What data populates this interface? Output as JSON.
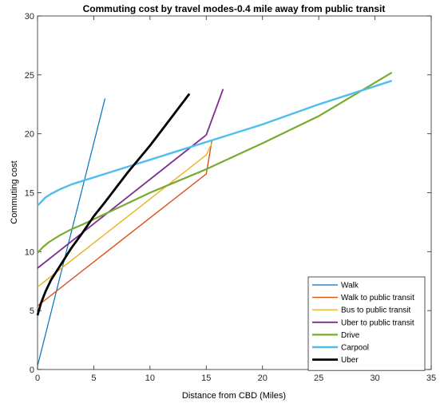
{
  "chart_data": {
    "type": "line",
    "title": "Commuting cost by travel modes-0.4 mile away from public transit",
    "xlabel": "Distance from CBD (Miles)",
    "ylabel": "Commuting cost",
    "xlim": [
      0,
      35
    ],
    "ylim": [
      0,
      30
    ],
    "xticks": [
      0,
      5,
      10,
      15,
      20,
      25,
      30,
      35
    ],
    "yticks": [
      0,
      5,
      10,
      15,
      20,
      25,
      30
    ],
    "grid": false,
    "legend_position": "bottom-right",
    "series": [
      {
        "name": "Walk",
        "color": "#0072BD",
        "width": 1.2,
        "points": [
          [
            0,
            0.3
          ],
          [
            6,
            23
          ]
        ]
      },
      {
        "name": "Walk to public transit",
        "color": "#D95319",
        "width": 1.4,
        "points": [
          [
            0,
            5.4
          ],
          [
            15,
            16.6
          ],
          [
            15.5,
            19.4
          ]
        ]
      },
      {
        "name": "Bus to public transit",
        "color": "#EDB120",
        "width": 1.4,
        "points": [
          [
            0,
            7
          ],
          [
            15,
            18.2
          ],
          [
            15.5,
            19.2
          ]
        ]
      },
      {
        "name": "Uber to public transit",
        "color": "#7E2F8E",
        "width": 1.8,
        "points": [
          [
            0,
            8.6
          ],
          [
            15,
            19.9
          ],
          [
            16.5,
            23.8
          ]
        ]
      },
      {
        "name": "Drive",
        "color": "#77AC30",
        "width": 2.2,
        "points": [
          [
            0,
            9.9
          ],
          [
            0.5,
            10.4
          ],
          [
            1,
            10.8
          ],
          [
            2,
            11.4
          ],
          [
            3,
            11.9
          ],
          [
            4,
            12.3
          ],
          [
            6,
            13.2
          ],
          [
            8,
            14.1
          ],
          [
            10,
            15
          ],
          [
            12,
            15.8
          ],
          [
            15,
            17
          ],
          [
            20,
            19.2
          ],
          [
            25,
            21.5
          ],
          [
            31.5,
            25.2
          ]
        ]
      },
      {
        "name": "Carpool",
        "color": "#4DBEEE",
        "width": 2.4,
        "points": [
          [
            0,
            13.9
          ],
          [
            0.3,
            14.2
          ],
          [
            0.7,
            14.6
          ],
          [
            1.2,
            14.9
          ],
          [
            2,
            15.3
          ],
          [
            3,
            15.7
          ],
          [
            4,
            16
          ],
          [
            6,
            16.6
          ],
          [
            8,
            17.2
          ],
          [
            10,
            17.8
          ],
          [
            12,
            18.4
          ],
          [
            15,
            19.3
          ],
          [
            20,
            20.8
          ],
          [
            25,
            22.5
          ],
          [
            31.5,
            24.5
          ]
        ]
      },
      {
        "name": "Uber",
        "color": "#000000",
        "width": 2.8,
        "points": [
          [
            0,
            4.6
          ],
          [
            0.3,
            5.6
          ],
          [
            0.7,
            6.6
          ],
          [
            1.2,
            7.6
          ],
          [
            2,
            8.8
          ],
          [
            3,
            10.3
          ],
          [
            4,
            11.6
          ],
          [
            5,
            13
          ],
          [
            6,
            14.2
          ],
          [
            8,
            16.7
          ],
          [
            10,
            19
          ],
          [
            12,
            21.5
          ],
          [
            13.5,
            23.4
          ]
        ]
      }
    ]
  }
}
